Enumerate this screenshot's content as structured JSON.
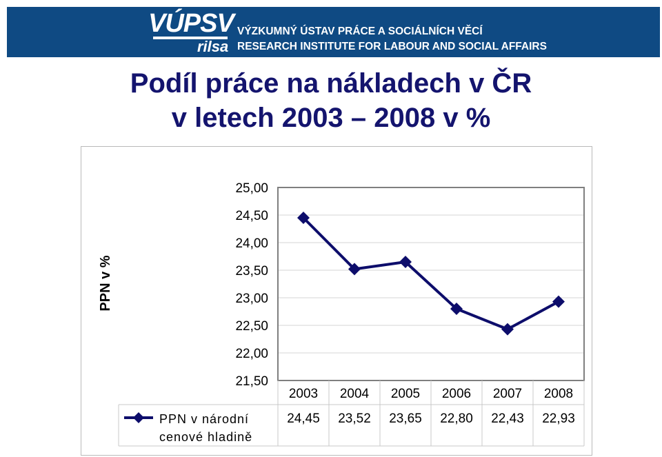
{
  "header": {
    "logo_main": "VÚPSV",
    "logo_sub": "rilsa",
    "institute_cz": "VÝZKUMNÝ ÚSTAV PRÁCE A SOCIÁLNÍCH VĚCÍ",
    "institute_en": "RESEARCH INSTITUTE FOR LABOUR AND SOCIAL AFFAIRS",
    "background_color": "#0f4a83"
  },
  "title": {
    "line1": "Podíl práce na nákladech v ČR",
    "line2": "v letech 2003 – 2008 v %"
  },
  "chart_data": {
    "type": "line",
    "ylabel": "PPN v %",
    "xlabel": "",
    "ylim": [
      21.5,
      25.0
    ],
    "yticks": [
      "25,00",
      "24,50",
      "24,00",
      "23,50",
      "23,00",
      "22,50",
      "22,00",
      "21,50"
    ],
    "yticks_values": [
      25.0,
      24.5,
      24.0,
      23.5,
      23.0,
      22.5,
      22.0,
      21.5
    ],
    "categories": [
      "2003",
      "2004",
      "2005",
      "2006",
      "2007",
      "2008"
    ],
    "series": [
      {
        "name": "PPN v národní cenové hladině",
        "values": [
          24.45,
          23.52,
          23.65,
          22.8,
          22.43,
          22.93
        ],
        "value_labels": [
          "24,45",
          "23,52",
          "23,65",
          "22,80",
          "22,43",
          "22,93"
        ],
        "color": "#0d0d6b",
        "marker": "diamond"
      }
    ],
    "legend_position": "bottom-left data table",
    "grid": true,
    "gridline_color": "#d4d4d4"
  }
}
